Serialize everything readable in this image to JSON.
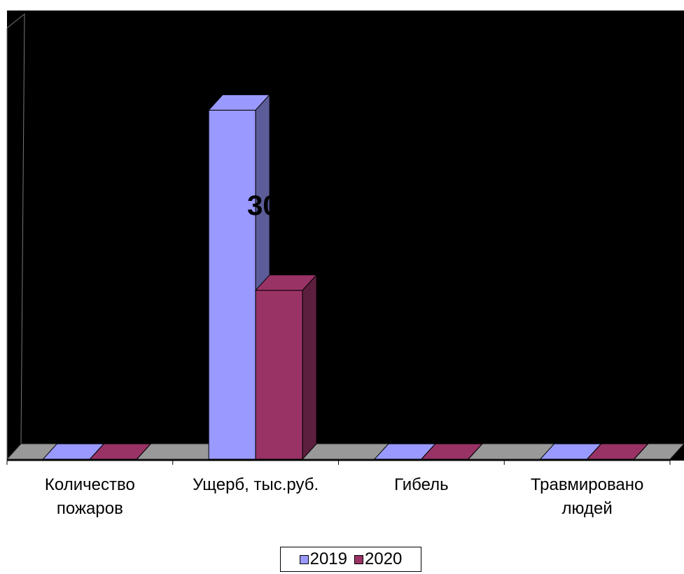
{
  "chart_data": {
    "type": "bar3d",
    "categories": [
      "Количество пожаров",
      "Ущерб, тыс.руб.",
      "Гибель",
      "Травмировано людей"
    ],
    "series": [
      {
        "name": "2019",
        "color": "#9999ff",
        "values": [
          0,
          62,
          0,
          0
        ]
      },
      {
        "name": "2020",
        "color": "#993366",
        "values": [
          0,
          30,
          0,
          0
        ],
        "value_labels": [
          null,
          "30",
          null,
          null
        ]
      }
    ],
    "ylim": [
      0,
      70
    ]
  }
}
